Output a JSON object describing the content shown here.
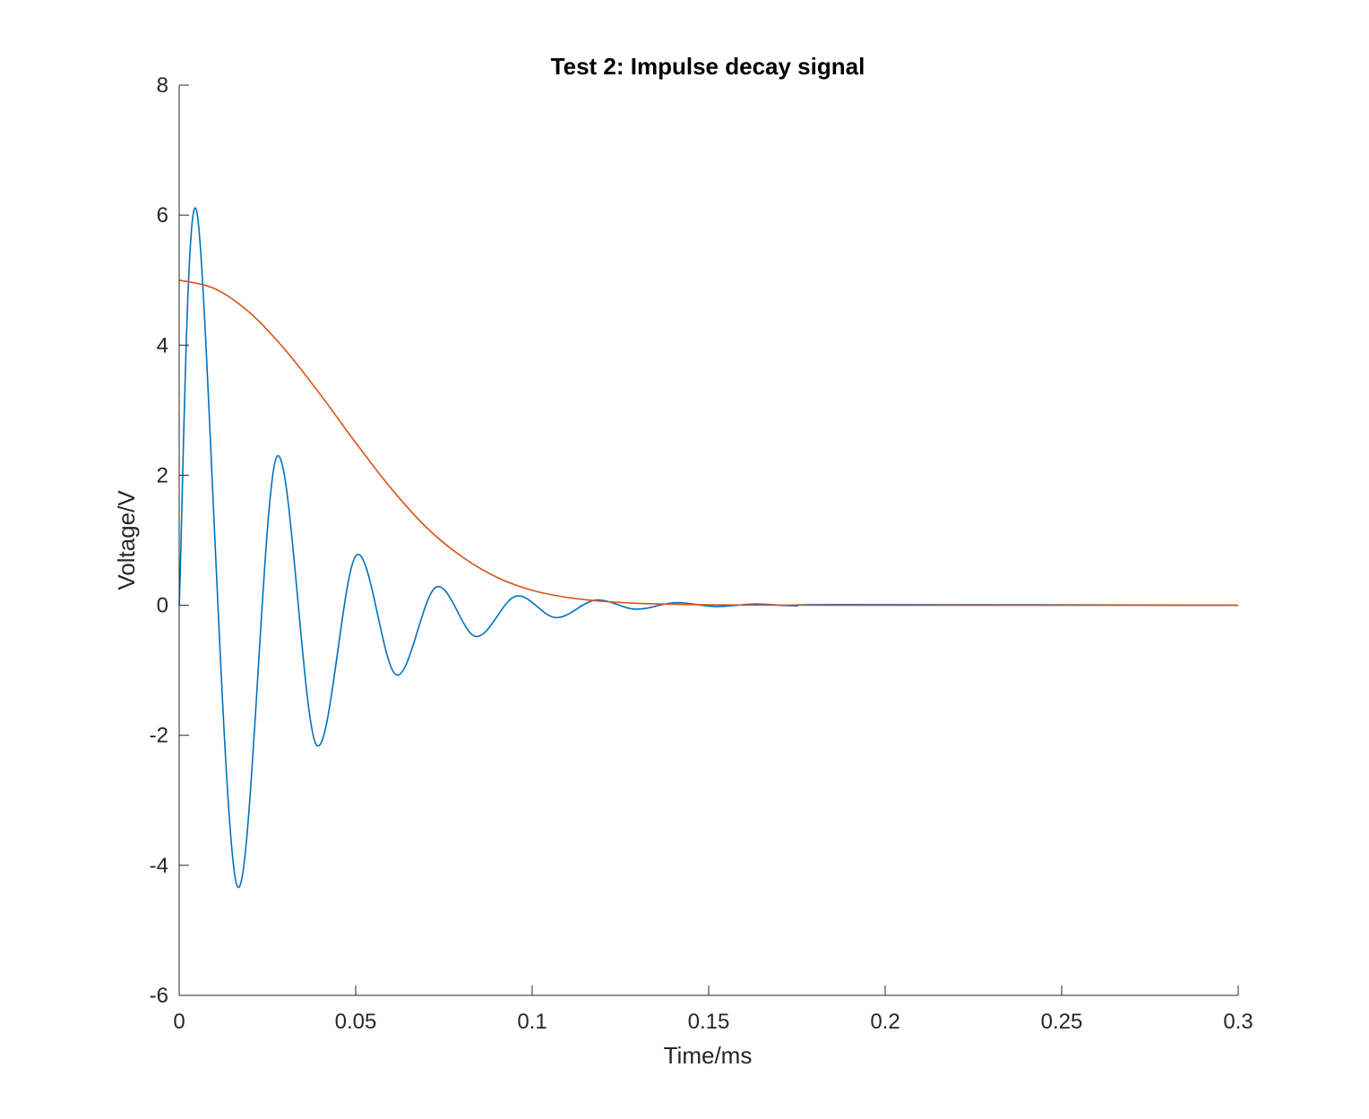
{
  "chart_data": {
    "type": "line",
    "title": "Test 2: Impulse decay signal",
    "xlabel": "Time/ms",
    "ylabel": "Voltage/V",
    "xlim": [
      0,
      0.3
    ],
    "ylim": [
      -6,
      8
    ],
    "xticks": [
      0,
      0.05,
      0.1,
      0.15,
      0.2,
      0.25,
      0.3
    ],
    "xtick_labels": [
      "0",
      "0.05",
      "0.1",
      "0.15",
      "0.2",
      "0.25",
      "0.3"
    ],
    "yticks": [
      -6,
      -4,
      -2,
      0,
      2,
      4,
      6,
      8
    ],
    "ytick_labels": [
      "-6",
      "-4",
      "-2",
      "0",
      "2",
      "4",
      "6",
      "8"
    ],
    "grid": false,
    "legend": "none",
    "series": [
      {
        "color": "#0072BD",
        "x": [
          0,
          0.005,
          0.0163,
          0.0276,
          0.0389,
          0.0502,
          0.0615,
          0.0728,
          0.0841,
          0.0954,
          0.1067,
          0.118,
          0.1293,
          0.1406,
          0.1519,
          0.1632,
          0.1745,
          0.1858,
          0.3
        ],
        "y": [
          0,
          6.05,
          -4.3,
          2.28,
          -2.15,
          0.77,
          -1.07,
          0.28,
          -0.48,
          0.14,
          -0.19,
          0.08,
          -0.06,
          0.04,
          -0.02,
          0.02,
          -0.01,
          0.01,
          0
        ]
      },
      {
        "color": "#D95319",
        "x": [
          0,
          0.01,
          0.02,
          0.03,
          0.04,
          0.05,
          0.06,
          0.07,
          0.08,
          0.09,
          0.1,
          0.11,
          0.12,
          0.13,
          0.14,
          0.15,
          0.16,
          0.18,
          0.2,
          0.3
        ],
        "y": [
          5.0,
          4.87,
          4.5,
          3.93,
          3.24,
          2.5,
          1.8,
          1.2,
          0.75,
          0.43,
          0.23,
          0.12,
          0.06,
          0.03,
          0.015,
          0.007,
          0.003,
          0.001,
          0,
          0
        ]
      }
    ]
  }
}
